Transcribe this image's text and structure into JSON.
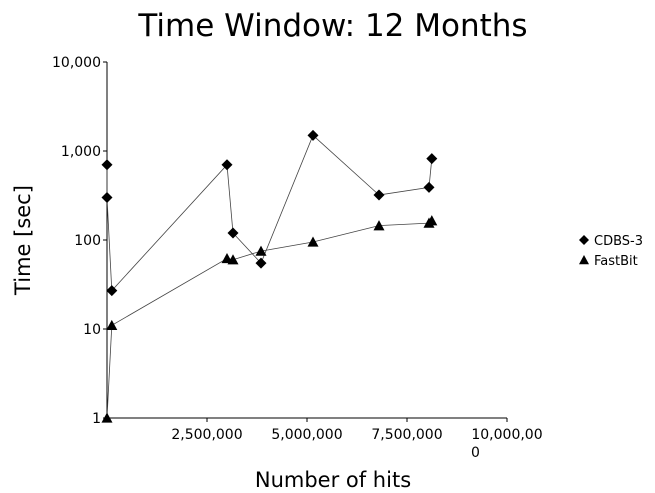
{
  "chart_data": {
    "type": "scatter",
    "title": "Time Window: 12 Months",
    "xlabel": "Number of hits",
    "ylabel": "Time [sec]",
    "xlim": [
      0,
      10000000
    ],
    "ylim": [
      1,
      10000
    ],
    "yscale": "log",
    "grid": false,
    "legend_position": "right",
    "x_ticks": [
      "2,500,000",
      "5,000,000",
      "7,500,000",
      "10,000,00\n0"
    ],
    "y_ticks": [
      "1",
      "10",
      "100",
      "1,000",
      "10,000"
    ],
    "series": [
      {
        "name": "CDBS-3",
        "marker": "diamond",
        "x": [
          0,
          0,
          120000,
          3000000,
          3150000,
          3850000,
          5150000,
          6800000,
          8050000,
          8120000
        ],
        "y": [
          700,
          300,
          27,
          700,
          120,
          55,
          1500,
          320,
          390,
          820
        ]
      },
      {
        "name": "FastBit",
        "marker": "triangle",
        "x": [
          0,
          120000,
          3000000,
          3150000,
          3850000,
          5150000,
          6800000,
          8050000,
          8120000
        ],
        "y": [
          1,
          11,
          62,
          60,
          75,
          95,
          145,
          155,
          165
        ]
      }
    ]
  }
}
